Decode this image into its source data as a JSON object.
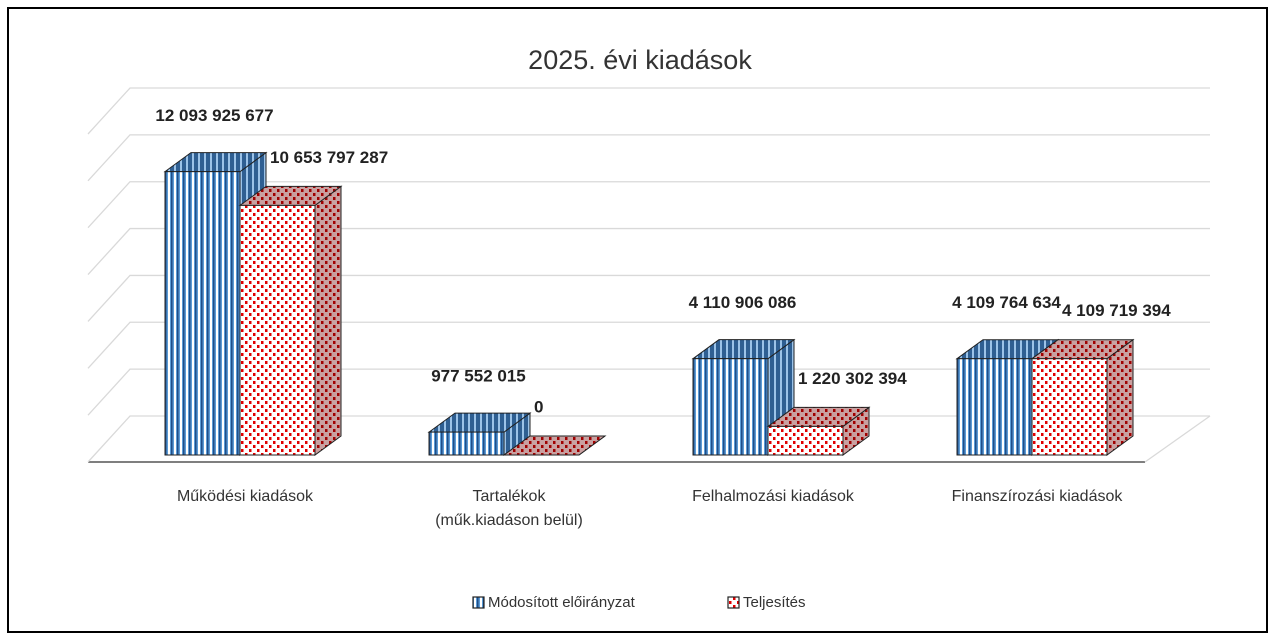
{
  "chart_data": {
    "type": "bar3d",
    "title": "2025. évi kiadások",
    "categories": [
      "Működési kiadások",
      "Tartalékok (műk.kiadáson belül)",
      "Felhalmozási kiadások",
      "Finanszírozási kiadások"
    ],
    "series": [
      {
        "name": "Módosított előirányzat",
        "color": "#2e75b6",
        "values": [
          12093925677,
          977552015,
          4110906086,
          4109764634
        ],
        "value_labels": [
          "12 093 925 677",
          "977 552 015",
          "4 110 906 086",
          "4 109 764 634"
        ]
      },
      {
        "name": "Teljesítés",
        "color": "#e00000",
        "values": [
          10653797287,
          0,
          1220302394,
          4109719394
        ],
        "value_labels": [
          "10 653 797 287",
          "0",
          "1 220 302 394",
          "4 109 719 394"
        ]
      }
    ],
    "ylim": [
      0,
      14000000000
    ],
    "yticks": [
      0,
      2000000000,
      4000000000,
      6000000000,
      8000000000,
      10000000000,
      12000000000,
      14000000000
    ],
    "grid": true,
    "legend": "bottom"
  }
}
